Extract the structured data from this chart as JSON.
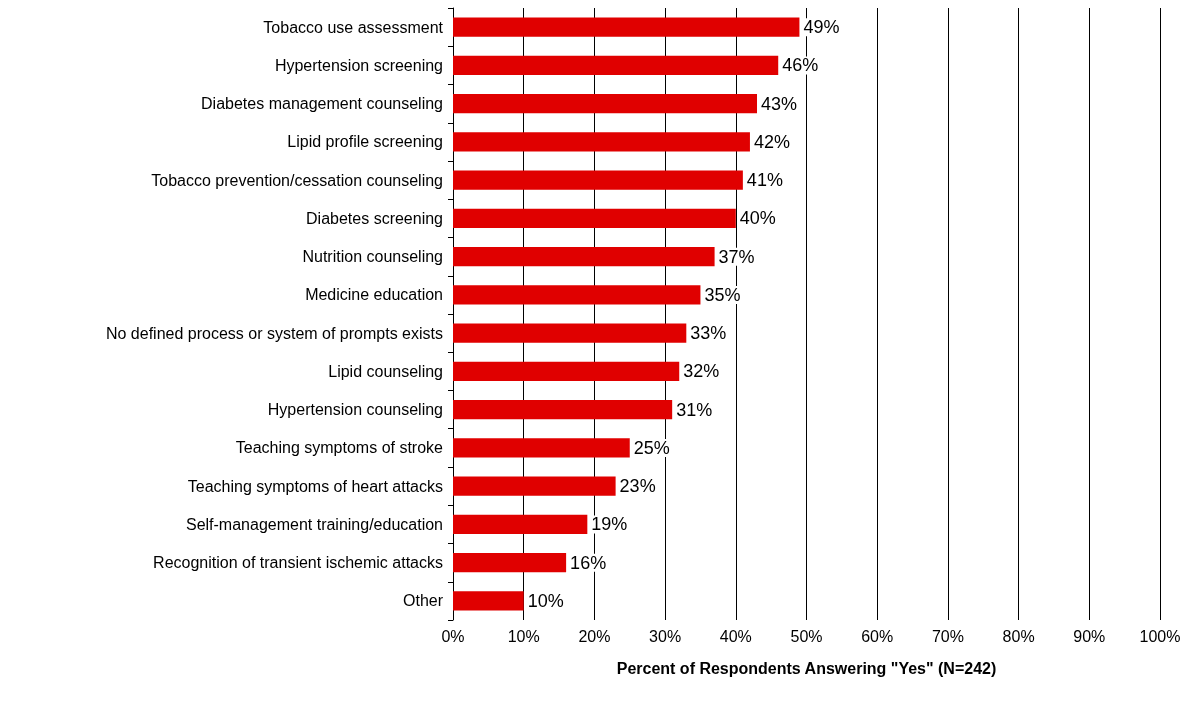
{
  "chart_data": {
    "type": "bar",
    "orientation": "horizontal",
    "xlabel": "Percent of Respondents Answering \"Yes\" (N=242)",
    "categories": [
      "Tobacco use assessment",
      "Hypertension screening",
      "Diabetes management counseling",
      "Lipid profile screening",
      "Tobacco prevention/cessation counseling",
      "Diabetes screening",
      "Nutrition counseling",
      "Medicine education",
      "No defined process or system of prompts exists",
      "Lipid counseling",
      "Hypertension counseling",
      "Teaching symptoms of stroke",
      "Teaching symptoms of heart attacks",
      "Self-management training/education",
      "Recognition of transient ischemic attacks",
      "Other"
    ],
    "values": [
      49,
      46,
      43,
      42,
      41,
      40,
      37,
      35,
      33,
      32,
      31,
      25,
      23,
      19,
      16,
      10
    ],
    "value_labels": [
      "49%",
      "46%",
      "43%",
      "42%",
      "41%",
      "40%",
      "37%",
      "35%",
      "33%",
      "32%",
      "31%",
      "25%",
      "23%",
      "19%",
      "16%",
      "10%"
    ],
    "color": "#e00000",
    "xlim": [
      0,
      100
    ],
    "xticks": [
      {
        "value": 0,
        "label": "0%"
      },
      {
        "value": 10,
        "label": "10%"
      },
      {
        "value": 20,
        "label": "20%"
      },
      {
        "value": 30,
        "label": "30%"
      },
      {
        "value": 40,
        "label": "40%"
      },
      {
        "value": 50,
        "label": "50%"
      },
      {
        "value": 60,
        "label": "60%"
      },
      {
        "value": 70,
        "label": "70%"
      },
      {
        "value": 80,
        "label": "80%"
      },
      {
        "value": 90,
        "label": "90%"
      },
      {
        "value": 100,
        "label": "100%"
      }
    ],
    "grid": "x"
  }
}
